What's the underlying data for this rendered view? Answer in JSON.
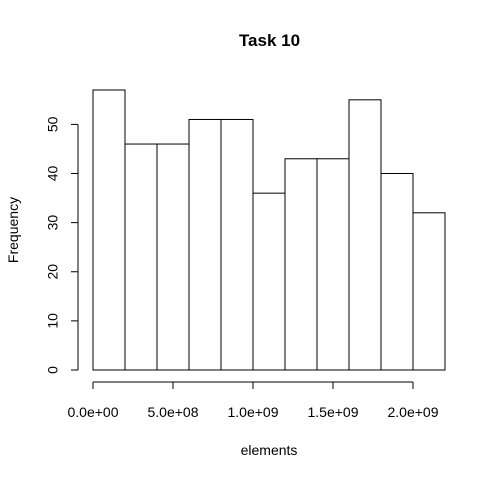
{
  "chart_data": {
    "type": "bar",
    "title": "Task 10",
    "xlabel": "elements",
    "ylabel": "Frequency",
    "bins": [
      {
        "start": 0,
        "end": 200000000,
        "count": 57
      },
      {
        "start": 200000000,
        "end": 400000000,
        "count": 46
      },
      {
        "start": 400000000,
        "end": 600000000,
        "count": 46
      },
      {
        "start": 600000000,
        "end": 800000000,
        "count": 51
      },
      {
        "start": 800000000,
        "end": 1000000000,
        "count": 51
      },
      {
        "start": 1000000000,
        "end": 1200000000,
        "count": 36
      },
      {
        "start": 1200000000,
        "end": 1400000000,
        "count": 43
      },
      {
        "start": 1400000000,
        "end": 1600000000,
        "count": 43
      },
      {
        "start": 1600000000,
        "end": 1800000000,
        "count": 55
      },
      {
        "start": 1800000000,
        "end": 2000000000,
        "count": 40
      },
      {
        "start": 2000000000,
        "end": 2200000000,
        "count": 32
      }
    ],
    "x_ticks": [
      {
        "value": 0,
        "label": "0.0e+00"
      },
      {
        "value": 500000000,
        "label": "5.0e+08"
      },
      {
        "value": 1000000000,
        "label": "1.0e+09"
      },
      {
        "value": 1500000000,
        "label": "1.5e+09"
      },
      {
        "value": 2000000000,
        "label": "2.0e+09"
      }
    ],
    "y_ticks": [
      {
        "value": 0,
        "label": "0"
      },
      {
        "value": 10,
        "label": "10"
      },
      {
        "value": 20,
        "label": "20"
      },
      {
        "value": 30,
        "label": "30"
      },
      {
        "value": 40,
        "label": "40"
      },
      {
        "value": 50,
        "label": "50"
      }
    ],
    "xlim": [
      0,
      2200000000
    ],
    "ylim": [
      0,
      57
    ],
    "grid": false,
    "legend": "none",
    "colors": {
      "bar_fill": "#ffffff",
      "bar_stroke": "#000000",
      "axis": "#000000"
    }
  }
}
